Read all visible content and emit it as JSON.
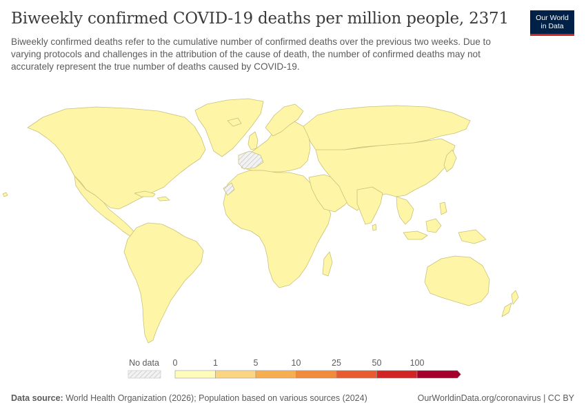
{
  "header": {
    "title": "Biweekly confirmed COVID-19 deaths per million people, 2371",
    "subtitle": "Biweekly confirmed deaths refer to the cumulative number of confirmed deaths over the previous two weeks. Due to varying protocols and challenges in the attribution of the cause of death, the number of confirmed deaths may not accurately represent the true number of deaths caused by COVID-19."
  },
  "logo": {
    "line1": "Our World",
    "line2": "in Data",
    "bg_color": "#002147",
    "accent_color": "#ce261e"
  },
  "map": {
    "land_color": "#fef6a6",
    "border_color": "#c9c07a",
    "no_data_pattern": "hatched-gray"
  },
  "legend": {
    "no_data_label": "No data",
    "bins": [
      {
        "from": "0",
        "to": "1",
        "color": "#fefcb8"
      },
      {
        "from": "1",
        "to": "5",
        "color": "#fbd580"
      },
      {
        "from": "5",
        "to": "10",
        "color": "#f7ae50"
      },
      {
        "from": "10",
        "to": "25",
        "color": "#f28a3b"
      },
      {
        "from": "25",
        "to": "50",
        "color": "#e85a30"
      },
      {
        "from": "50",
        "to": "100",
        "color": "#d12424"
      },
      {
        "from": "100",
        "to": "",
        "color": "#a5002b"
      }
    ],
    "ticks": [
      "0",
      "1",
      "5",
      "10",
      "25",
      "50",
      "100"
    ]
  },
  "footer": {
    "source_label": "Data source:",
    "source_text": "World Health Organization (2026); Population based on various sources (2024)",
    "url_text": "OurWorldinData.org/coronavirus | CC BY"
  }
}
